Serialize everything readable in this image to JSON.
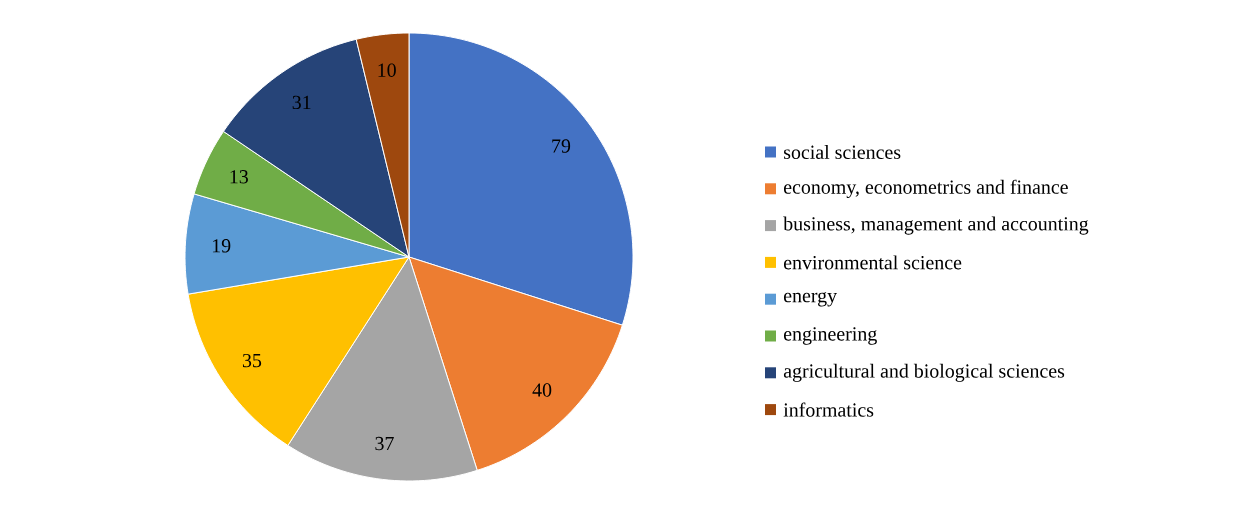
{
  "chart_data": {
    "type": "pie",
    "categories": [
      "social sciences",
      "economy, econometrics and finance",
      "business, management and accounting",
      "environmental science",
      "energy",
      "engineering",
      "agricultural and biological sciences",
      "informatics"
    ],
    "values": [
      79,
      40,
      37,
      35,
      19,
      13,
      31,
      10
    ],
    "colors": [
      "#4472c4",
      "#ed7d31",
      "#a5a5a5",
      "#ffc000",
      "#5b9bd5",
      "#70ad47",
      "#264478",
      "#9e480e"
    ],
    "data_labels": true,
    "legend": "right"
  }
}
